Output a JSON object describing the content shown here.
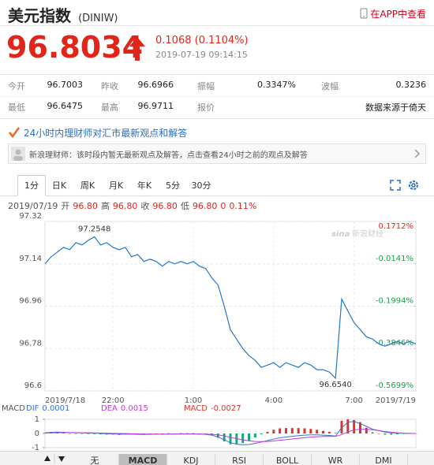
{
  "header": {
    "title": "美元指数",
    "code": "(DINIW)",
    "app_link": "在APP中查看"
  },
  "quote": {
    "price": "96.8034",
    "change": "0.1068 (0.1104%)",
    "time": "2019-07-19 09:14:15"
  },
  "stats": {
    "rows": [
      [
        "今开",
        "96.7003",
        "昨收",
        "96.6966",
        "振幅",
        "0.3347%",
        "波幅",
        "0.3236"
      ],
      [
        "最低",
        "96.6475",
        "最高",
        "96.9711",
        "报价",
        "数据来源于倚天"
      ]
    ]
  },
  "news": {
    "title": "24小时内理财师对汇市最新观点和解答",
    "message": "新浪理财师：该时段内暂无最新观点及解答，点击查看24小时之前的观点及解答"
  },
  "chart_tabs": {
    "items": [
      "1分",
      "日K",
      "周K",
      "月K",
      "年K",
      "5分",
      "30分"
    ],
    "active": "1分"
  },
  "info": {
    "date": "2019/07/19",
    "items": [
      {
        "label": "开",
        "value": "96.80"
      },
      {
        "label": "高",
        "value": "96.80"
      },
      {
        "label": "收",
        "value": "96.80"
      },
      {
        "label": "低",
        "value": "96.80"
      }
    ],
    "change": "0",
    "change_pct": "0.11%"
  },
  "indicator_tabs": {
    "items": [
      "无",
      "MACD",
      "KDJ",
      "RSI",
      "BOLL",
      "WR",
      "DMI"
    ],
    "active": "MACD"
  },
  "chart_data": [
    {
      "type": "line",
      "color": "#1f78c8",
      "grid": true,
      "watermark": [
        "sina",
        "新浪财经"
      ],
      "categories": [
        "2019/7/18",
        null,
        null,
        null,
        null,
        null,
        null,
        null,
        null,
        null,
        null,
        "22:00",
        null,
        null,
        null,
        null,
        null,
        null,
        null,
        null,
        null,
        null,
        null,
        null,
        "1:00",
        null,
        null,
        null,
        null,
        null,
        null,
        null,
        null,
        null,
        null,
        null,
        null,
        "4:00",
        null,
        null,
        null,
        null,
        null,
        null,
        null,
        null,
        null,
        null,
        null,
        null,
        "7:00",
        null,
        null,
        null,
        null,
        null,
        null,
        null,
        null,
        null,
        "2019/7/19"
      ],
      "values": [
        97.14,
        97.17,
        97.19,
        97.21,
        97.2,
        97.23,
        97.22,
        97.24,
        97.2548,
        97.22,
        97.23,
        97.21,
        97.2,
        97.21,
        97.17,
        97.18,
        97.15,
        97.16,
        97.15,
        97.13,
        97.15,
        97.14,
        97.15,
        97.14,
        97.15,
        97.13,
        97.12,
        97.08,
        97.05,
        96.96,
        96.86,
        96.82,
        96.78,
        96.75,
        96.73,
        96.7,
        96.71,
        96.72,
        96.7,
        96.72,
        96.71,
        96.7,
        96.72,
        96.71,
        96.69,
        96.69,
        96.68,
        96.654,
        96.99,
        96.94,
        96.89,
        96.86,
        96.83,
        96.82,
        96.8,
        96.79,
        96.8,
        96.81,
        96.8,
        96.81,
        96.8
      ],
      "value_labels": [
        null,
        null,
        null,
        null,
        null,
        null,
        null,
        null,
        "97.2548",
        null,
        null,
        null,
        null,
        null,
        null,
        null,
        null,
        null,
        null,
        null,
        null,
        null,
        null,
        null,
        null,
        null,
        null,
        null,
        null,
        null,
        null,
        null,
        null,
        null,
        null,
        null,
        null,
        null,
        null,
        null,
        null,
        null,
        null,
        null,
        null,
        null,
        null,
        "96.6540",
        null,
        null,
        null,
        null,
        null,
        null,
        null,
        null,
        null,
        null,
        null,
        null,
        null
      ],
      "ylim": [
        96.6,
        97.32
      ],
      "yticks": [
        97.32,
        97.14,
        96.96,
        96.78,
        96.6
      ],
      "y2lim": [
        -0.5699,
        0.1712
      ],
      "y2ticks": [
        {
          "value": 0.1712,
          "label": "0.1712%"
        },
        {
          "value": -0.0141,
          "label": "-0.0141%"
        },
        {
          "value": -0.1994,
          "label": "-0.1994%"
        },
        {
          "value": -0.3846,
          "label": "-0.3846%"
        },
        {
          "value": -0.5699,
          "label": "-0.5699%"
        }
      ]
    },
    {
      "type": "macd",
      "title": "MACD",
      "ylim": [
        -1,
        1
      ],
      "yticks": [
        1,
        0,
        -1
      ],
      "series": [
        {
          "name": "DIF",
          "color": "#3a6fd8",
          "last": 0.0001,
          "values": [
            0.05,
            0.08,
            0.1,
            0.08,
            0.06,
            0.05,
            0.04,
            0.03,
            0.02,
            0,
            -0.02,
            -0.03,
            -0.05,
            -0.04,
            -0.05,
            -0.06,
            -0.07,
            -0.06,
            -0.05,
            -0.05,
            -0.04,
            -0.04,
            -0.03,
            -0.03,
            -0.03,
            -0.04,
            -0.06,
            -0.12,
            -0.25,
            -0.45,
            -0.65,
            -0.75,
            -0.8,
            -0.78,
            -0.7,
            -0.6,
            -0.5,
            -0.4,
            -0.3,
            -0.25,
            -0.2,
            -0.15,
            -0.12,
            -0.1,
            -0.1,
            -0.12,
            -0.14,
            -0.18,
            0.4,
            0.8,
            0.85,
            0.7,
            0.5,
            0.3,
            0.2,
            0.1,
            0.05,
            0.02,
            0.01,
            0,
            0.0001
          ]
        },
        {
          "name": "DEA",
          "color": "#c23bd4",
          "last": 0.0015,
          "values": [
            0.03,
            0.04,
            0.05,
            0.06,
            0.06,
            0.06,
            0.05,
            0.05,
            0.04,
            0.03,
            0.02,
            0.01,
            0,
            -0.01,
            -0.02,
            -0.03,
            -0.04,
            -0.04,
            -0.05,
            -0.05,
            -0.05,
            -0.04,
            -0.04,
            -0.04,
            -0.04,
            -0.04,
            -0.04,
            -0.06,
            -0.1,
            -0.17,
            -0.27,
            -0.37,
            -0.46,
            -0.52,
            -0.56,
            -0.57,
            -0.56,
            -0.53,
            -0.48,
            -0.44,
            -0.39,
            -0.34,
            -0.3,
            -0.26,
            -0.23,
            -0.21,
            -0.2,
            -0.2,
            -0.08,
            0.1,
            0.25,
            0.3,
            0.3,
            0.26,
            0.2,
            0.14,
            0.09,
            0.05,
            0.02,
            0.01,
            0.0015
          ]
        }
      ],
      "bars": {
        "name": "MACD",
        "up_color": "#d8352b",
        "down_color": "#19a87a",
        "last": -0.0027,
        "values": [
          0.04,
          0.08,
          0.1,
          0.04,
          0,
          -0.02,
          -0.02,
          -0.04,
          -0.04,
          -0.06,
          -0.08,
          -0.08,
          -0.1,
          -0.06,
          -0.06,
          -0.06,
          -0.06,
          -0.04,
          0,
          0,
          0.02,
          0,
          0.02,
          0.02,
          0.02,
          0,
          -0.04,
          -0.12,
          -0.3,
          -0.56,
          -0.76,
          -0.76,
          -0.68,
          -0.52,
          -0.28,
          -0.06,
          0.12,
          0.26,
          0.36,
          0.38,
          0.38,
          0.38,
          0.36,
          0.32,
          0.26,
          0.18,
          0.12,
          0.04,
          0.9,
          1,
          0.95,
          0.8,
          0.4,
          0.08,
          0,
          -0.08,
          -0.08,
          -0.06,
          -0.02,
          -0.02,
          -0.0027
        ]
      }
    }
  ]
}
